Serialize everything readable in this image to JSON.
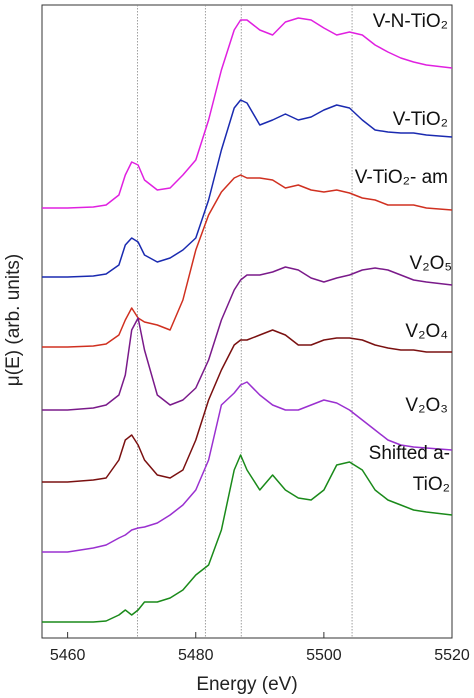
{
  "chart_data": {
    "type": "line",
    "x_label": "Energy (eV)",
    "y_label": "μ(E) (arb. units)",
    "xlim": [
      5456,
      5520
    ],
    "ylim": [
      0,
      633
    ],
    "xticks": [
      5460,
      5480,
      5500,
      5520
    ],
    "reference_lines": [
      5470.9,
      5481.5,
      5487.1,
      5504.4
    ],
    "x": [
      5456,
      5460,
      5464,
      5466,
      5468,
      5469,
      5470,
      5471,
      5472,
      5474,
      5476,
      5478,
      5480,
      5482,
      5484,
      5486,
      5487,
      5488,
      5490,
      5492,
      5494,
      5496,
      5498,
      5500,
      5502,
      5504,
      5506,
      5508,
      5510,
      5512,
      5514,
      5516,
      5520
    ],
    "series": [
      {
        "name": "V-N-TiO₂",
        "color": "#e020e0",
        "values": [
          430,
          430,
          431,
          433,
          443,
          463,
          476,
          473,
          458,
          448,
          450,
          463,
          478,
          518,
          568,
          608,
          618,
          618,
          608,
          603,
          616,
          620,
          618,
          610,
          603,
          606,
          603,
          593,
          586,
          580,
          576,
          573,
          570
        ]
      },
      {
        "name": "V-TiO₂",
        "color": "#1a2ab0",
        "values": [
          361,
          361,
          362,
          364,
          373,
          393,
          400,
          396,
          383,
          376,
          380,
          388,
          400,
          438,
          488,
          530,
          538,
          535,
          513,
          518,
          524,
          518,
          521,
          528,
          533,
          530,
          518,
          508,
          506,
          505,
          505,
          503,
          501
        ]
      },
      {
        "name": "V-TiO₂- am",
        "color": "#d03020",
        "values": [
          291,
          291,
          292,
          294,
          303,
          318,
          330,
          320,
          316,
          313,
          308,
          338,
          388,
          423,
          446,
          460,
          463,
          460,
          460,
          458,
          450,
          453,
          448,
          446,
          448,
          445,
          440,
          438,
          433,
          433,
          433,
          430,
          428
        ]
      },
      {
        "name": "V₂O₅",
        "color": "#7a1a8a",
        "values": [
          228,
          228,
          230,
          233,
          243,
          263,
          308,
          320,
          288,
          243,
          233,
          238,
          250,
          278,
          318,
          348,
          358,
          363,
          363,
          366,
          371,
          368,
          360,
          356,
          360,
          363,
          368,
          370,
          368,
          363,
          358,
          356,
          353
        ]
      },
      {
        "name": "V₂O₄",
        "color": "#7a1010",
        "values": [
          156,
          156,
          158,
          160,
          178,
          198,
          203,
          193,
          178,
          163,
          160,
          168,
          198,
          238,
          268,
          293,
          298,
          298,
          303,
          308,
          303,
          293,
          293,
          298,
          300,
          300,
          298,
          293,
          290,
          288,
          288,
          286,
          286
        ]
      },
      {
        "name": "V₂O₃",
        "color": "#9a30d0",
        "values": [
          86,
          86,
          90,
          93,
          100,
          103,
          108,
          110,
          111,
          115,
          123,
          133,
          148,
          178,
          233,
          245,
          253,
          256,
          243,
          233,
          228,
          228,
          233,
          238,
          235,
          228,
          218,
          208,
          198,
          193,
          191,
          190,
          188
        ]
      },
      {
        "name": "Shifted a-TiO₂",
        "color": "#1a8a1a",
        "values": [
          16,
          16,
          16,
          17,
          23,
          28,
          23,
          28,
          36,
          36,
          40,
          48,
          63,
          73,
          108,
          168,
          183,
          168,
          148,
          163,
          148,
          140,
          138,
          148,
          173,
          176,
          168,
          148,
          138,
          133,
          128,
          126,
          123
        ]
      }
    ]
  }
}
